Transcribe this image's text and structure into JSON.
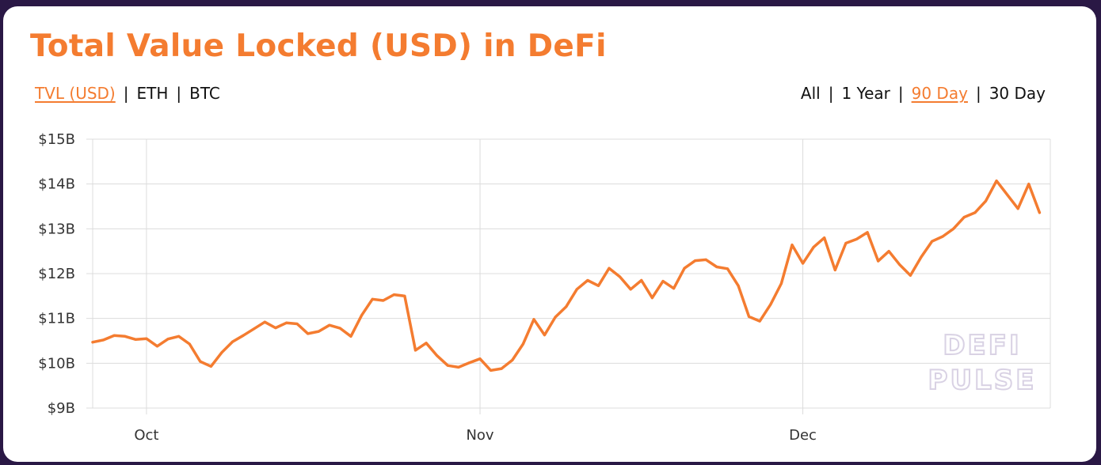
{
  "title": "Total Value Locked (USD) in DeFi",
  "metric_tabs": [
    {
      "label": "TVL (USD)",
      "active": true
    },
    {
      "label": "ETH",
      "active": false
    },
    {
      "label": "BTC",
      "active": false
    }
  ],
  "range_tabs": [
    {
      "label": "All",
      "active": false
    },
    {
      "label": "1 Year",
      "active": false
    },
    {
      "label": "90 Day",
      "active": true
    },
    {
      "label": "30 Day",
      "active": false
    }
  ],
  "separator": "|",
  "watermark": [
    "DEFI",
    "PULSE"
  ],
  "colors": {
    "accent": "#f47c30",
    "grid": "#dcdcdc",
    "background": "#2a1845"
  },
  "chart_data": {
    "type": "line",
    "title": "Total Value Locked (USD) in DeFi",
    "xlabel": "",
    "ylabel": "",
    "x_start": "2020-09-26",
    "x_end": "2020-12-24",
    "ylim": [
      9,
      15
    ],
    "y_ticks": [
      {
        "value": 9,
        "label": "$9B"
      },
      {
        "value": 10,
        "label": "$10B"
      },
      {
        "value": 11,
        "label": "$11B"
      },
      {
        "value": 12,
        "label": "$12B"
      },
      {
        "value": 13,
        "label": "$13B"
      },
      {
        "value": 14,
        "label": "$14B"
      },
      {
        "value": 15,
        "label": "$15B"
      }
    ],
    "x_ticks": [
      {
        "date": "2020-10-01",
        "label": "Oct"
      },
      {
        "date": "2020-11-01",
        "label": "Nov"
      },
      {
        "date": "2020-12-01",
        "label": "Dec"
      }
    ],
    "grid": true,
    "series": [
      {
        "color": "#f47c30",
        "points": [
          [
            "2020-09-26",
            10.47
          ],
          [
            "2020-09-27",
            10.52
          ],
          [
            "2020-09-28",
            10.62
          ],
          [
            "2020-09-29",
            10.6
          ],
          [
            "2020-09-30",
            10.53
          ],
          [
            "2020-10-01",
            10.55
          ],
          [
            "2020-10-02",
            10.38
          ],
          [
            "2020-10-03",
            10.54
          ],
          [
            "2020-10-04",
            10.6
          ],
          [
            "2020-10-05",
            10.43
          ],
          [
            "2020-10-06",
            10.04
          ],
          [
            "2020-10-07",
            9.93
          ],
          [
            "2020-10-08",
            10.24
          ],
          [
            "2020-10-09",
            10.48
          ],
          [
            "2020-10-10",
            10.62
          ],
          [
            "2020-10-11",
            10.77
          ],
          [
            "2020-10-12",
            10.92
          ],
          [
            "2020-10-13",
            10.79
          ],
          [
            "2020-10-14",
            10.9
          ],
          [
            "2020-10-15",
            10.88
          ],
          [
            "2020-10-16",
            10.66
          ],
          [
            "2020-10-17",
            10.71
          ],
          [
            "2020-10-18",
            10.85
          ],
          [
            "2020-10-19",
            10.78
          ],
          [
            "2020-10-20",
            10.6
          ],
          [
            "2020-10-21",
            11.07
          ],
          [
            "2020-10-22",
            11.43
          ],
          [
            "2020-10-23",
            11.4
          ],
          [
            "2020-10-24",
            11.53
          ],
          [
            "2020-10-25",
            11.5
          ],
          [
            "2020-10-26",
            10.29
          ],
          [
            "2020-10-27",
            10.45
          ],
          [
            "2020-10-28",
            10.17
          ],
          [
            "2020-10-29",
            9.95
          ],
          [
            "2020-10-30",
            9.91
          ],
          [
            "2020-10-31",
            10.01
          ],
          [
            "2020-11-01",
            10.1
          ],
          [
            "2020-11-02",
            9.84
          ],
          [
            "2020-11-03",
            9.88
          ],
          [
            "2020-11-04",
            10.07
          ],
          [
            "2020-11-05",
            10.43
          ],
          [
            "2020-11-06",
            10.98
          ],
          [
            "2020-11-07",
            10.63
          ],
          [
            "2020-11-08",
            11.03
          ],
          [
            "2020-11-09",
            11.26
          ],
          [
            "2020-11-10",
            11.65
          ],
          [
            "2020-11-11",
            11.85
          ],
          [
            "2020-11-12",
            11.73
          ],
          [
            "2020-11-13",
            12.12
          ],
          [
            "2020-11-14",
            11.93
          ],
          [
            "2020-11-15",
            11.65
          ],
          [
            "2020-11-16",
            11.85
          ],
          [
            "2020-11-17",
            11.46
          ],
          [
            "2020-11-18",
            11.83
          ],
          [
            "2020-11-19",
            11.67
          ],
          [
            "2020-11-20",
            12.12
          ],
          [
            "2020-11-21",
            12.29
          ],
          [
            "2020-11-22",
            12.31
          ],
          [
            "2020-11-23",
            12.15
          ],
          [
            "2020-11-24",
            12.11
          ],
          [
            "2020-11-25",
            11.73
          ],
          [
            "2020-11-26",
            11.04
          ],
          [
            "2020-11-27",
            10.94
          ],
          [
            "2020-11-28",
            11.31
          ],
          [
            "2020-11-29",
            11.78
          ],
          [
            "2020-11-30",
            12.64
          ],
          [
            "2020-12-01",
            12.23
          ],
          [
            "2020-12-02",
            12.59
          ],
          [
            "2020-12-03",
            12.8
          ],
          [
            "2020-12-04",
            12.08
          ],
          [
            "2020-12-05",
            12.68
          ],
          [
            "2020-12-06",
            12.77
          ],
          [
            "2020-12-07",
            12.92
          ],
          [
            "2020-12-08",
            12.28
          ],
          [
            "2020-12-09",
            12.5
          ],
          [
            "2020-12-10",
            12.2
          ],
          [
            "2020-12-11",
            11.96
          ],
          [
            "2020-12-12",
            12.37
          ],
          [
            "2020-12-13",
            12.72
          ],
          [
            "2020-12-14",
            12.83
          ],
          [
            "2020-12-15",
            13.0
          ],
          [
            "2020-12-16",
            13.26
          ],
          [
            "2020-12-17",
            13.36
          ],
          [
            "2020-12-18",
            13.62
          ],
          [
            "2020-12-19",
            14.07
          ],
          [
            "2020-12-20",
            13.76
          ],
          [
            "2020-12-21",
            13.45
          ],
          [
            "2020-12-22",
            14.0
          ],
          [
            "2020-12-23",
            13.36
          ]
        ]
      }
    ]
  }
}
